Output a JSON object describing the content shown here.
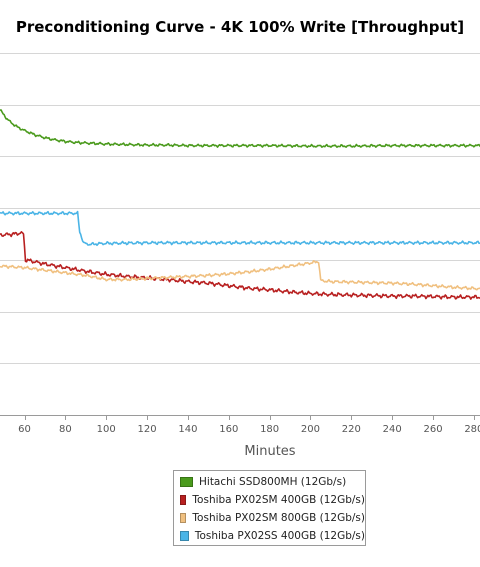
{
  "chart_data": {
    "type": "line",
    "title": "Preconditioning Curve - 4K 100% Write [Throughput]",
    "xlabel": "Minutes",
    "ylabel": "",
    "xlim": [
      48,
      283
    ],
    "ylim": [
      0,
      7
    ],
    "x_ticks": [
      60,
      80,
      100,
      120,
      140,
      160,
      180,
      200,
      220,
      240,
      260,
      280
    ],
    "y_gridlines": [
      1,
      2,
      3,
      4,
      5,
      6,
      7
    ],
    "grid": "horizontal",
    "legend_position": "bottom-center",
    "series": [
      {
        "name": "Hitachi SSD800MH (12Gb/s)",
        "color": "#4a9a1c",
        "points": [
          [
            48,
            5.9
          ],
          [
            52,
            5.7
          ],
          [
            56,
            5.58
          ],
          [
            60,
            5.5
          ],
          [
            65,
            5.42
          ],
          [
            70,
            5.36
          ],
          [
            75,
            5.32
          ],
          [
            80,
            5.29
          ],
          [
            85,
            5.27
          ],
          [
            90,
            5.26
          ],
          [
            100,
            5.24
          ],
          [
            110,
            5.23
          ],
          [
            120,
            5.22
          ],
          [
            130,
            5.22
          ],
          [
            140,
            5.21
          ],
          [
            160,
            5.21
          ],
          [
            180,
            5.21
          ],
          [
            200,
            5.2
          ],
          [
            220,
            5.2
          ],
          [
            240,
            5.21
          ],
          [
            260,
            5.21
          ],
          [
            283,
            5.21
          ]
        ]
      },
      {
        "name": "Toshiba PX02SM 400GB (12Gb/s)",
        "color": "#b82020",
        "points": [
          [
            48,
            3.48
          ],
          [
            55,
            3.5
          ],
          [
            58,
            3.52
          ],
          [
            59.5,
            3.5
          ],
          [
            60.5,
            3.0
          ],
          [
            63,
            2.98
          ],
          [
            70,
            2.92
          ],
          [
            80,
            2.85
          ],
          [
            90,
            2.78
          ],
          [
            100,
            2.72
          ],
          [
            110,
            2.68
          ],
          [
            120,
            2.65
          ],
          [
            130,
            2.62
          ],
          [
            140,
            2.58
          ],
          [
            150,
            2.55
          ],
          [
            160,
            2.5
          ],
          [
            170,
            2.45
          ],
          [
            180,
            2.42
          ],
          [
            190,
            2.38
          ],
          [
            200,
            2.35
          ],
          [
            210,
            2.33
          ],
          [
            220,
            2.32
          ],
          [
            230,
            2.31
          ],
          [
            240,
            2.3
          ],
          [
            250,
            2.3
          ],
          [
            260,
            2.29
          ],
          [
            270,
            2.28
          ],
          [
            283,
            2.28
          ]
        ]
      },
      {
        "name": "Toshiba PX02SM 800GB (12Gb/s)",
        "color": "#f0c080",
        "points": [
          [
            48,
            2.88
          ],
          [
            60,
            2.85
          ],
          [
            70,
            2.8
          ],
          [
            80,
            2.75
          ],
          [
            90,
            2.7
          ],
          [
            100,
            2.62
          ],
          [
            110,
            2.62
          ],
          [
            120,
            2.64
          ],
          [
            130,
            2.66
          ],
          [
            140,
            2.68
          ],
          [
            150,
            2.7
          ],
          [
            160,
            2.73
          ],
          [
            170,
            2.77
          ],
          [
            180,
            2.82
          ],
          [
            190,
            2.88
          ],
          [
            200,
            2.94
          ],
          [
            204,
            2.97
          ],
          [
            205,
            2.6
          ],
          [
            210,
            2.58
          ],
          [
            220,
            2.57
          ],
          [
            230,
            2.56
          ],
          [
            240,
            2.55
          ],
          [
            250,
            2.53
          ],
          [
            260,
            2.5
          ],
          [
            270,
            2.47
          ],
          [
            283,
            2.44
          ]
        ]
      },
      {
        "name": "Toshiba PX02SS 400GB (12Gb/s)",
        "color": "#4ab4e6",
        "points": [
          [
            48,
            3.9
          ],
          [
            60,
            3.9
          ],
          [
            70,
            3.9
          ],
          [
            80,
            3.9
          ],
          [
            86,
            3.9
          ],
          [
            87,
            3.55
          ],
          [
            89,
            3.32
          ],
          [
            92,
            3.3
          ],
          [
            100,
            3.32
          ],
          [
            120,
            3.33
          ],
          [
            140,
            3.33
          ],
          [
            160,
            3.33
          ],
          [
            180,
            3.33
          ],
          [
            200,
            3.33
          ],
          [
            220,
            3.33
          ],
          [
            240,
            3.33
          ],
          [
            260,
            3.33
          ],
          [
            283,
            3.33
          ]
        ]
      }
    ]
  }
}
